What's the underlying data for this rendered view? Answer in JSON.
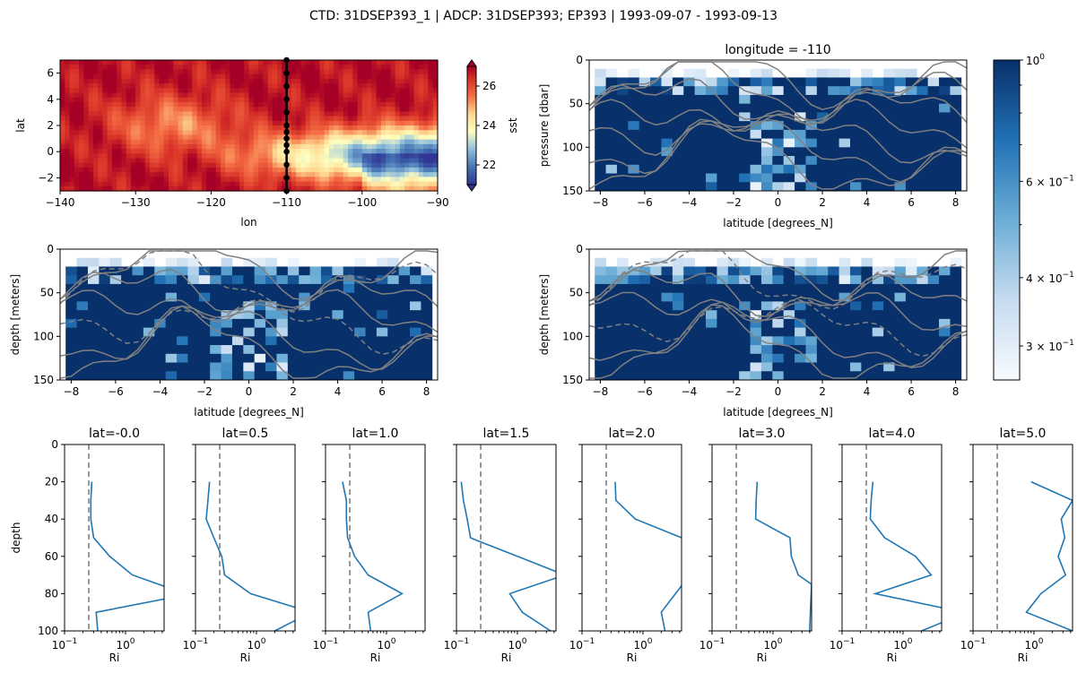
{
  "suptitle": "CTD: 31DSEP393_1 | ADCP: 31DSEP393; EP393 | 1993-09-07 - 1993-09-13",
  "colors": {
    "profile": "#1f77b4",
    "reference": "#808080",
    "contour": "#808080",
    "frame": "#000000"
  },
  "chart_data": [
    {
      "id": "sst_map",
      "type": "heatmap",
      "title": "",
      "xlabel": "lon",
      "ylabel": "lat",
      "xlim": [
        -140,
        -90
      ],
      "ylim": [
        -3,
        7
      ],
      "xticks": [
        -140,
        -130,
        -120,
        -110,
        -100,
        -90
      ],
      "yticks": [
        -2,
        0,
        2,
        4,
        6
      ],
      "colorbar": {
        "label": "sst",
        "range": [
          21,
          27
        ],
        "ticks": [
          22,
          24,
          26
        ],
        "colormap": "RdYlBu_r",
        "extend": "both"
      },
      "section_line": {
        "lon": -110,
        "lats": [
          -3,
          -2,
          -1,
          0,
          0.5,
          1,
          1.5,
          2,
          3,
          4,
          5,
          6,
          7
        ]
      }
    },
    {
      "id": "ri_pressure",
      "type": "heatmap",
      "title": "longitude = -110",
      "xlabel": "latitude [degrees_N]",
      "ylabel": "pressure [dbar]",
      "xlim": [
        -8.5,
        8.5
      ],
      "ylim": [
        150,
        0
      ],
      "xticks": [
        -8,
        -6,
        -4,
        -2,
        0,
        2,
        4,
        6,
        8
      ],
      "yticks": [
        0,
        50,
        100,
        150
      ],
      "contours": "gray solid isolines"
    },
    {
      "id": "ri_depth_left",
      "type": "heatmap",
      "title": "",
      "xlabel": "latitude [degrees_N]",
      "ylabel": "depth [meters]",
      "xlim": [
        -8.5,
        8.5
      ],
      "ylim": [
        150,
        0
      ],
      "xticks": [
        -8,
        -6,
        -4,
        -2,
        0,
        2,
        4,
        6,
        8
      ],
      "yticks": [
        0,
        50,
        100,
        150
      ],
      "contours": "gray solid and dashed isolines"
    },
    {
      "id": "ri_depth_right",
      "type": "heatmap",
      "title": "",
      "xlabel": "latitude [degrees_N]",
      "ylabel": "depth [meters]",
      "xlim": [
        -8.5,
        8.5
      ],
      "ylim": [
        150,
        0
      ],
      "xticks": [
        -8,
        -6,
        -4,
        -2,
        0,
        2,
        4,
        6,
        8
      ],
      "yticks": [
        0,
        50,
        100,
        150
      ],
      "contours": "gray solid and dashed isolines"
    },
    {
      "id": "ri_colorbar",
      "type": "colorbar",
      "scale": "log",
      "range": [
        0.26,
        1.0
      ],
      "colormap": "Blues",
      "ticks": [
        {
          "value": 1.0,
          "base": "10",
          "exp": "0",
          "prefix": ""
        },
        {
          "value": 0.6,
          "base": "10",
          "exp": "−1",
          "prefix": "6 × "
        },
        {
          "value": 0.4,
          "base": "10",
          "exp": "−1",
          "prefix": "4 × "
        },
        {
          "value": 0.3,
          "base": "10",
          "exp": "−1",
          "prefix": "3 × "
        }
      ],
      "minor_ticks": [
        0.9,
        0.8,
        0.7,
        0.5
      ]
    },
    {
      "id": "ri_profiles",
      "type": "line",
      "xscale": "log",
      "xlim": [
        0.1,
        4.3
      ],
      "ylim": [
        100,
        0
      ],
      "xlabel": "Ri",
      "ylabel": "depth",
      "xticks": [
        {
          "value": 0.1,
          "base": "10",
          "exp": "−1"
        },
        {
          "value": 1,
          "base": "10",
          "exp": "0"
        }
      ],
      "yticks": [
        0,
        20,
        40,
        60,
        80,
        100
      ],
      "reference_x": 0.25,
      "panels": [
        {
          "title": "lat=-0.0",
          "x": [
            0.28,
            0.27,
            0.27,
            0.3,
            0.55,
            1.3,
            4.3,
            6,
            0.33,
            0.35
          ],
          "y": [
            20,
            30,
            40,
            50,
            60,
            70,
            76,
            82,
            90,
            100
          ]
        },
        {
          "title": "lat=0.5",
          "x": [
            0.17,
            0.16,
            0.15,
            0.2,
            0.27,
            0.3,
            0.8,
            5,
            6,
            2
          ],
          "y": [
            20,
            30,
            40,
            50,
            60,
            70,
            80,
            88,
            92,
            100
          ]
        },
        {
          "title": "lat=1.0",
          "x": [
            0.19,
            0.22,
            0.22,
            0.23,
            0.3,
            0.5,
            1.8,
            0.5,
            0.55
          ],
          "y": [
            20,
            30,
            40,
            50,
            60,
            70,
            80,
            90,
            100
          ]
        },
        {
          "title": "lat=1.5",
          "x": [
            0.12,
            0.13,
            0.15,
            0.17,
            0.2,
            1,
            6,
            0.75,
            1.2,
            3.5
          ],
          "y": [
            20,
            30,
            40,
            50,
            51,
            60,
            70,
            80,
            90,
            100
          ]
        },
        {
          "title": "lat=2.0",
          "x": [
            0.35,
            0.36,
            0.75,
            4.3,
            10,
            2.0,
            2.3
          ],
          "y": [
            20,
            30,
            40,
            50,
            60,
            90,
            100
          ]
        },
        {
          "title": "lat=3.0",
          "x": [
            0.55,
            0.53,
            0.52,
            1.9,
            2.0,
            2.6,
            4.3,
            4.1,
            4.0
          ],
          "y": [
            20,
            30,
            40,
            50,
            60,
            70,
            75,
            90,
            100
          ]
        },
        {
          "title": "lat=4.0",
          "x": [
            0.32,
            0.3,
            0.29,
            0.5,
            1.6,
            2.9,
            0.35,
            5,
            8,
            2
          ],
          "y": [
            20,
            30,
            40,
            50,
            60,
            70,
            80,
            88,
            92,
            100
          ]
        },
        {
          "title": "lat=5.0",
          "x": [
            0.9,
            4.3,
            2.8,
            3.2,
            2.5,
            3.3,
            1.3,
            0.75,
            4.3
          ],
          "y": [
            20,
            30,
            40,
            50,
            60,
            70,
            80,
            90,
            100
          ]
        }
      ]
    }
  ]
}
